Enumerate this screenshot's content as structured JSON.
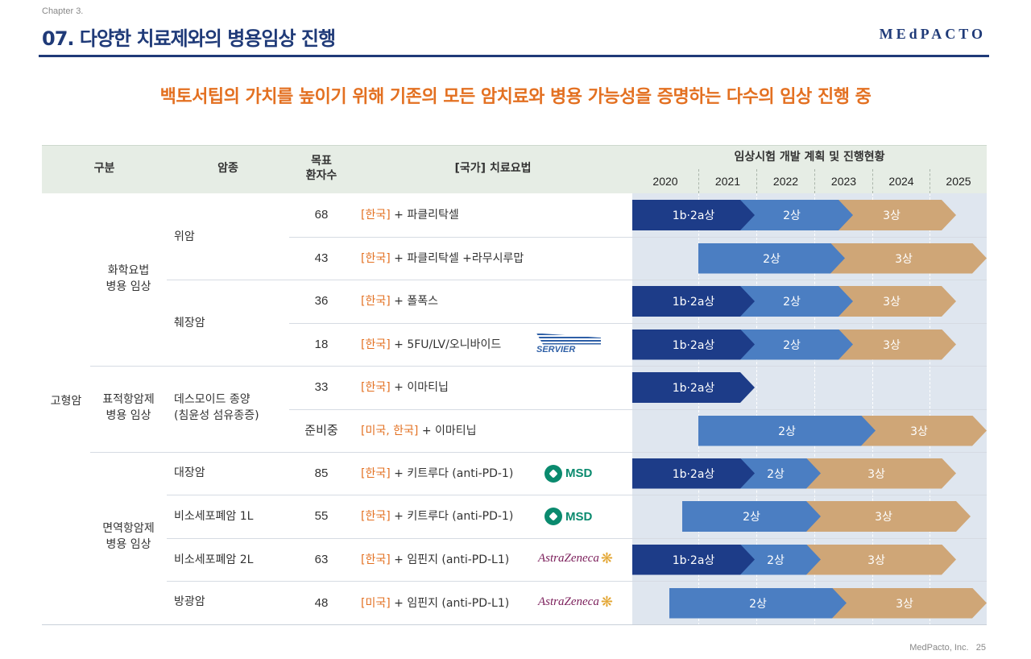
{
  "header": {
    "chapter": "Chapter 3.",
    "title": "07. 다양한 치료제와의 병용임상 진행",
    "logo": "MEdPACTO"
  },
  "headline": "백토서팁의 가치를 높이기 위해 기존의 모든 암치료와 병용 가능성을 증명하는 다수의 임상 진행 중",
  "table": {
    "headers": {
      "category": "구분",
      "cancer": "암종",
      "target": "목표\n환자수",
      "therapy": "[국가] 치료요법",
      "plan": "임상시험 개발 계획 및 진행현황"
    },
    "years": [
      "2020",
      "2021",
      "2022",
      "2023",
      "2024",
      "2025"
    ],
    "type_label": "고형암",
    "groups": [
      {
        "label": "화학요법\n병용 임상"
      },
      {
        "label": "표적항암제\n병용 임상"
      },
      {
        "label": "면역항암제\n병용 임상"
      }
    ],
    "cancers": [
      {
        "label": "위암"
      },
      {
        "label": "췌장암"
      },
      {
        "label": "데스모이드 종양\n(침윤성 섬유종증)"
      },
      {
        "label": "대장암"
      },
      {
        "label": "비소세포폐암 1L"
      },
      {
        "label": "비소세포폐암 2L"
      },
      {
        "label": "방광암"
      }
    ],
    "rows": [
      {
        "count": "68",
        "country": "[한국]",
        "therapy": "+ 파클리탁셀",
        "logo": "",
        "bars": [
          {
            "label": "1b·2a상",
            "phase": 1
          },
          {
            "label": "2상",
            "phase": 2
          },
          {
            "label": "3상",
            "phase": 3
          }
        ]
      },
      {
        "count": "43",
        "country": "[한국]",
        "therapy": "+ 파클리탁셀 +라무시루맙",
        "logo": "",
        "bars": [
          {
            "label": "2상",
            "phase": 2
          },
          {
            "label": "3상",
            "phase": 3
          }
        ]
      },
      {
        "count": "36",
        "country": "[한국]",
        "therapy": "+ 폴폭스",
        "logo": "",
        "bars": [
          {
            "label": "1b·2a상",
            "phase": 1
          },
          {
            "label": "2상",
            "phase": 2
          },
          {
            "label": "3상",
            "phase": 3
          }
        ]
      },
      {
        "count": "18",
        "country": "[한국]",
        "therapy": "+ 5FU/LV/오니바이드",
        "logo": "SERVIER",
        "bars": [
          {
            "label": "1b·2a상",
            "phase": 1
          },
          {
            "label": "2상",
            "phase": 2
          },
          {
            "label": "3상",
            "phase": 3
          }
        ]
      },
      {
        "count": "33",
        "country": "[한국]",
        "therapy": "+ 이마티닙",
        "logo": "",
        "bars": [
          {
            "label": "1b·2a상",
            "phase": 1
          }
        ]
      },
      {
        "count": "준비중",
        "country": "[미국, 한국]",
        "therapy": "+ 이마티닙",
        "logo": "",
        "bars": [
          {
            "label": "2상",
            "phase": 2
          },
          {
            "label": "3상",
            "phase": 3
          }
        ]
      },
      {
        "count": "85",
        "country": "[한국]",
        "therapy": "+ 키트루다 (anti-PD-1)",
        "logo": "MSD",
        "bars": [
          {
            "label": "1b·2a상",
            "phase": 1
          },
          {
            "label": "2상",
            "phase": 2
          },
          {
            "label": "3상",
            "phase": 3
          }
        ]
      },
      {
        "count": "55",
        "country": "[한국]",
        "therapy": "+ 키트루다 (anti-PD-1)",
        "logo": "MSD",
        "bars": [
          {
            "label": "2상",
            "phase": 2
          },
          {
            "label": "3상",
            "phase": 3
          }
        ]
      },
      {
        "count": "63",
        "country": "[한국]",
        "therapy": "+ 임핀지 (anti-PD-L1)",
        "logo": "AstraZeneca",
        "bars": [
          {
            "label": "1b·2a상",
            "phase": 1
          },
          {
            "label": "2상",
            "phase": 2
          },
          {
            "label": "3상",
            "phase": 3
          }
        ]
      },
      {
        "count": "48",
        "country": "[미국]",
        "therapy": "+ 임핀지 (anti-PD-L1)",
        "logo": "AstraZeneca",
        "bars": [
          {
            "label": "2상",
            "phase": 2
          },
          {
            "label": "3상",
            "phase": 3
          }
        ]
      }
    ]
  },
  "colors": {
    "navy": "#1f3a78",
    "orange": "#e37021",
    "phase1": "#1d3c88",
    "phase2": "#4b7ec2",
    "phase3": "#cfa677"
  },
  "footer": {
    "company": "MedPacto, Inc.",
    "page": "25"
  }
}
